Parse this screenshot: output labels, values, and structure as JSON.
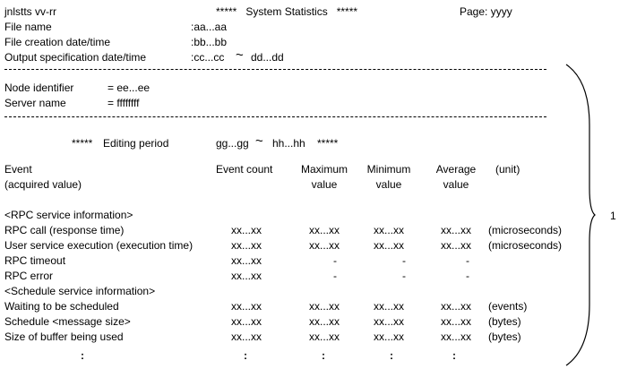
{
  "header": {
    "program": "jnlstts vv-rr",
    "title": "*****   System Statistics   *****",
    "page": "Page: yyyy"
  },
  "file_info": [
    {
      "label": "File name",
      "value": ":aa...aa"
    },
    {
      "label": "File creation date/time",
      "value": ":bb...bb"
    },
    {
      "label": "Output specification date/time",
      "value": ":cc...cc",
      "sep": "~",
      "end": "dd...dd"
    }
  ],
  "node": {
    "node_label": "Node identifier",
    "node_value": "= ee...ee",
    "server_label": "Server name",
    "server_value": "= ffffffff"
  },
  "editing": {
    "stars_left": "*****",
    "label": "Editing period",
    "start": "gg...gg",
    "sep": "~",
    "end": "hh...hh",
    "stars_right": "*****"
  },
  "columns": {
    "event": "Event",
    "event_sub": "(acquired value)",
    "count": "Event count",
    "max": "Maximum",
    "max_sub": "value",
    "min": "Minimum",
    "min_sub": "value",
    "avg": "Average",
    "avg_sub": "value",
    "unit": "(unit)"
  },
  "sections": {
    "rpc": "<RPC service information>",
    "schedule": "<Schedule service information>"
  },
  "rows": [
    {
      "event": "RPC call (response time)",
      "count": "xx...xx",
      "max": "xx...xx",
      "min": "xx...xx",
      "avg": "xx...xx",
      "unit": "(microseconds)"
    },
    {
      "event": "User service execution (execution time)",
      "count": "xx...xx",
      "max": "xx...xx",
      "min": "xx...xx",
      "avg": "xx...xx",
      "unit": "(microseconds)"
    },
    {
      "event": "RPC timeout",
      "count": "xx...xx",
      "max": "-",
      "min": "-",
      "avg": "-",
      "unit": ""
    },
    {
      "event": "RPC error",
      "count": "xx...xx",
      "max": "-",
      "min": "-",
      "avg": "-",
      "unit": ""
    },
    {
      "event": "Waiting to be scheduled",
      "count": "xx...xx",
      "max": "xx...xx",
      "min": "xx...xx",
      "avg": "xx...xx",
      "unit": "(events)"
    },
    {
      "event": "Schedule <message size>",
      "count": "xx...xx",
      "max": "xx...xx",
      "min": "xx...xx",
      "avg": "xx...xx",
      "unit": "(bytes)"
    },
    {
      "event": "Size of buffer being used",
      "count": "xx...xx",
      "max": "xx...xx",
      "min": "xx...xx",
      "avg": "xx...xx",
      "unit": "(bytes)"
    }
  ],
  "continuation": ":",
  "brace_label": "1"
}
